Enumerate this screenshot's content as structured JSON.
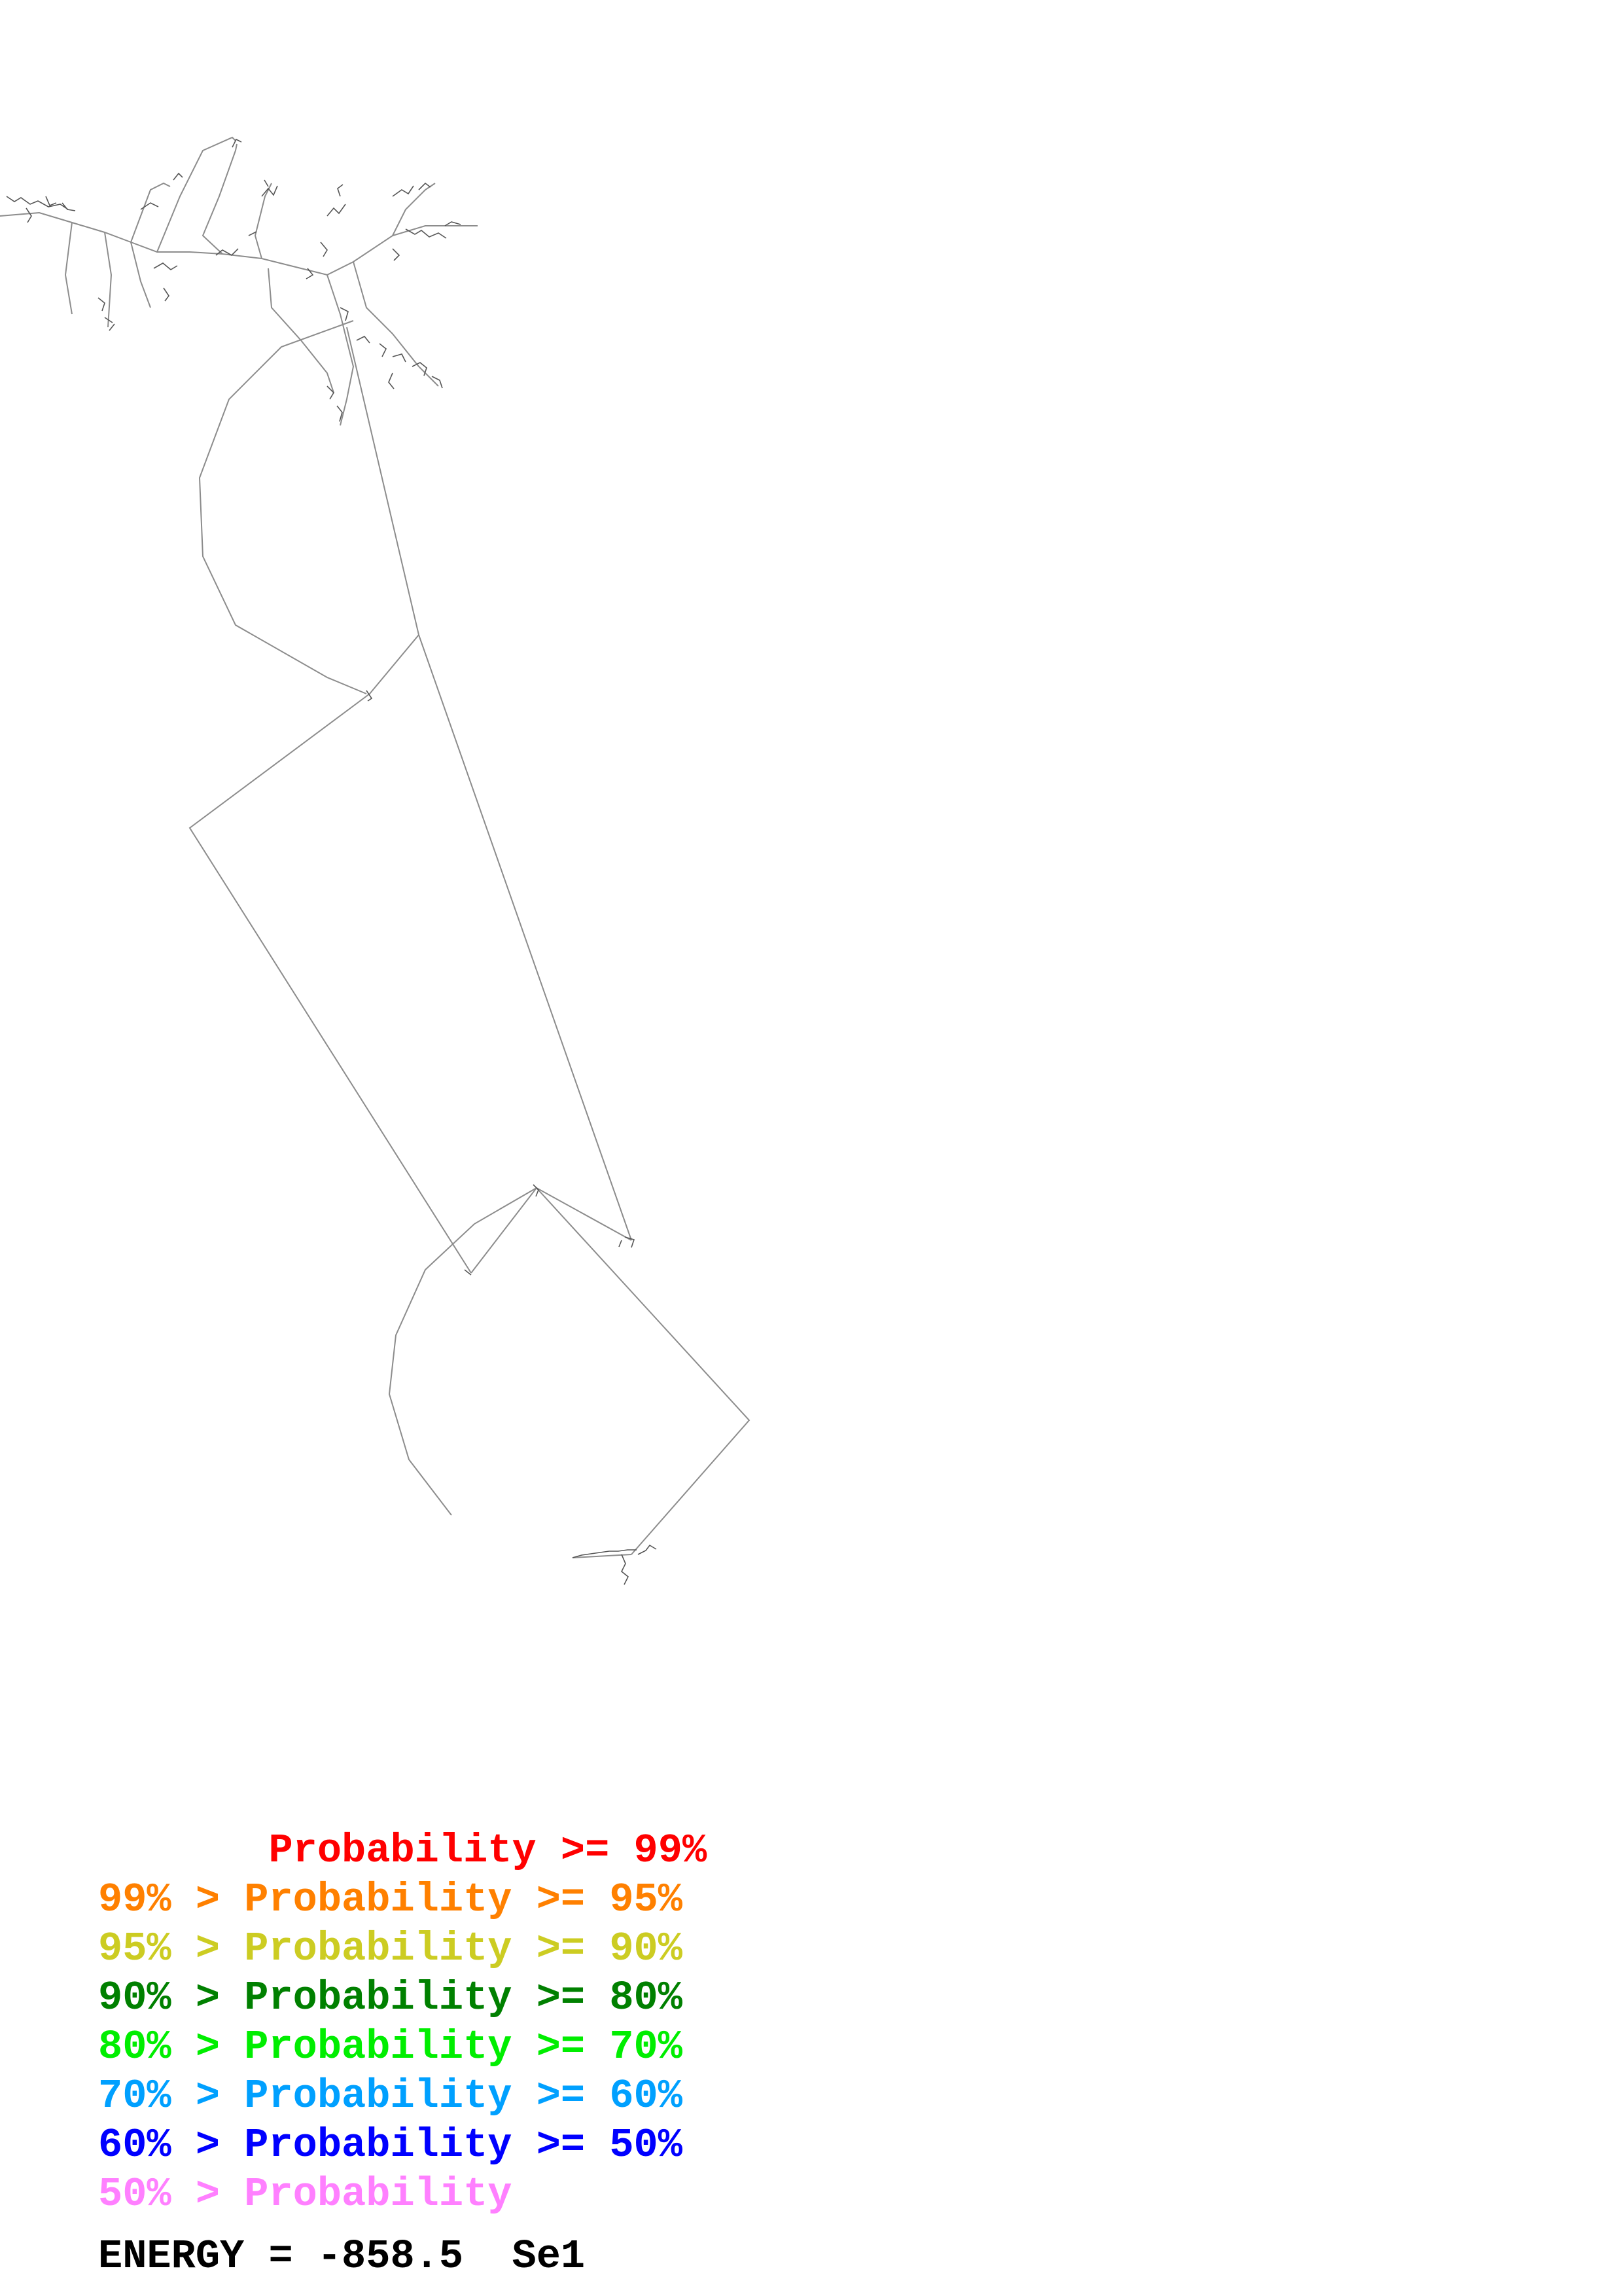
{
  "legend": {
    "items": [
      {
        "text": "       Probability >= 99%",
        "color": "#ff0000"
      },
      {
        "text": "99% > Probability >= 95%",
        "color": "#ff8000"
      },
      {
        "text": "95% > Probability >= 90%",
        "color": "#cccc22"
      },
      {
        "text": "90% > Probability >= 80%",
        "color": "#008000"
      },
      {
        "text": "80% > Probability >= 70%",
        "color": "#00ee00"
      },
      {
        "text": "70% > Probability >= 60%",
        "color": "#00a0ff"
      },
      {
        "text": "60% > Probability >= 50%",
        "color": "#0000ff"
      },
      {
        "text": "50% > Probability",
        "color": "#ff80ff"
      }
    ]
  },
  "energy_label": "ENERGY = -858.5  Se1"
}
